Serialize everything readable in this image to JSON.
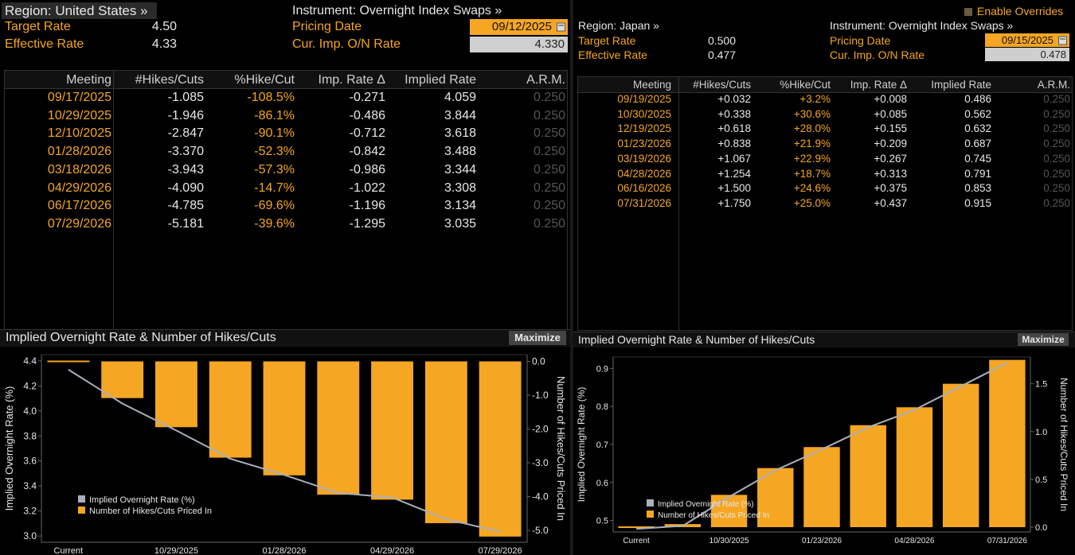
{
  "left": {
    "region": "Region: United States »",
    "instrument": "Instrument: Overnight Index Swaps »",
    "target_rate_label": "Target Rate",
    "target_rate": "4.50",
    "effective_rate_label": "Effective Rate",
    "effective_rate": "4.33",
    "pricing_date_label": "Pricing Date",
    "pricing_date": "09/12/2025",
    "cur_imp_label": "Cur. Imp. O/N Rate",
    "cur_imp_rate": "4.330",
    "table": {
      "headers": [
        "Meeting",
        "#Hikes/Cuts",
        "%Hike/Cut",
        "Imp. Rate Δ",
        "Implied Rate",
        "A.R.M."
      ],
      "rows": [
        [
          "09/17/2025",
          "-1.085",
          "-108.5%",
          "-0.271",
          "4.059",
          "0.250"
        ],
        [
          "10/29/2025",
          "-1.946",
          "-86.1%",
          "-0.486",
          "3.844",
          "0.250"
        ],
        [
          "12/10/2025",
          "-2.847",
          "-90.1%",
          "-0.712",
          "3.618",
          "0.250"
        ],
        [
          "01/28/2026",
          "-3.370",
          "-52.3%",
          "-0.842",
          "3.488",
          "0.250"
        ],
        [
          "03/18/2026",
          "-3.943",
          "-57.3%",
          "-0.986",
          "3.344",
          "0.250"
        ],
        [
          "04/29/2026",
          "-4.090",
          "-14.7%",
          "-1.022",
          "3.308",
          "0.250"
        ],
        [
          "06/17/2026",
          "-4.785",
          "-69.6%",
          "-1.196",
          "3.134",
          "0.250"
        ],
        [
          "07/29/2026",
          "-5.181",
          "-39.6%",
          "-1.295",
          "3.035",
          "0.250"
        ]
      ]
    },
    "chart_title": "Implied Overnight Rate & Number of Hikes/Cuts",
    "maximize": "Maximize"
  },
  "right": {
    "enable_overrides": "Enable Overrides",
    "region": "Region: Japan »",
    "instrument": "Instrument: Overnight Index Swaps »",
    "target_rate_label": "Target Rate",
    "target_rate": "0.500",
    "effective_rate_label": "Effective Rate",
    "effective_rate": "0.477",
    "pricing_date_label": "Pricing Date",
    "pricing_date": "09/15/2025",
    "cur_imp_label": "Cur. Imp. O/N Rate",
    "cur_imp_rate": "0.478",
    "table": {
      "headers": [
        "Meeting",
        "#Hikes/Cuts",
        "%Hike/Cut",
        "Imp. Rate Δ",
        "Implied Rate",
        "A.R.M."
      ],
      "rows": [
        [
          "09/19/2025",
          "+0.032",
          "+3.2%",
          "+0.008",
          "0.486",
          "0.250"
        ],
        [
          "10/30/2025",
          "+0.338",
          "+30.6%",
          "+0.085",
          "0.562",
          "0.250"
        ],
        [
          "12/19/2025",
          "+0.618",
          "+28.0%",
          "+0.155",
          "0.632",
          "0.250"
        ],
        [
          "01/23/2026",
          "+0.838",
          "+21.9%",
          "+0.209",
          "0.687",
          "0.250"
        ],
        [
          "03/19/2026",
          "+1.067",
          "+22.9%",
          "+0.267",
          "0.745",
          "0.250"
        ],
        [
          "04/28/2026",
          "+1.254",
          "+18.7%",
          "+0.313",
          "0.791",
          "0.250"
        ],
        [
          "06/16/2026",
          "+1.500",
          "+24.6%",
          "+0.375",
          "0.853",
          "0.250"
        ],
        [
          "07/31/2026",
          "+1.750",
          "+25.0%",
          "+0.437",
          "0.915",
          "0.250"
        ]
      ]
    },
    "chart_title": "Implied Overnight Rate & Number of Hikes/Cuts",
    "maximize": "Maximize"
  },
  "colors": {
    "accent": "#f5a623",
    "line": "#a9b0bd",
    "text": "#e8e8e8"
  },
  "chart_data": [
    {
      "type": "bar",
      "region": "United States",
      "categories": [
        "Current",
        "09/17/2025",
        "10/29/2025",
        "12/10/2025",
        "01/28/2026",
        "03/18/2026",
        "04/29/2026",
        "06/17/2026",
        "07/29/2026"
      ],
      "x_tick_labels": [
        "Current",
        "10/29/2025",
        "01/28/2026",
        "04/29/2026",
        "07/29/2026"
      ],
      "series": [
        {
          "name": "Number of Hikes/Cuts Priced In",
          "axis": "right",
          "values": [
            0,
            -1.085,
            -1.946,
            -2.847,
            -3.37,
            -3.943,
            -4.09,
            -4.785,
            -5.181
          ]
        },
        {
          "name": "Implied Overnight Rate (%)",
          "axis": "left",
          "type": "line",
          "values": [
            4.33,
            4.059,
            3.844,
            3.618,
            3.488,
            3.344,
            3.308,
            3.134,
            3.035
          ]
        }
      ],
      "ylabel": "Implied Overnight Rate (%)",
      "y2label": "Number of Hikes/Cuts Priced In",
      "ylim": [
        2.95,
        4.45
      ],
      "yticks": [
        3.0,
        3.2,
        3.4,
        3.6,
        3.8,
        4.0,
        4.2,
        4.4
      ],
      "y2lim": [
        -5.35,
        0.2
      ],
      "y2ticks": [
        0.0,
        -1.0,
        -2.0,
        -3.0,
        -4.0,
        -5.0
      ],
      "legend": "bottom-left"
    },
    {
      "type": "bar",
      "region": "Japan",
      "categories": [
        "Current",
        "09/19/2025",
        "10/30/2025",
        "12/19/2025",
        "01/23/2026",
        "03/19/2026",
        "04/28/2026",
        "06/16/2026",
        "07/31/2026"
      ],
      "x_tick_labels": [
        "Current",
        "10/30/2025",
        "01/23/2026",
        "04/28/2026",
        "07/31/2026"
      ],
      "series": [
        {
          "name": "Number of Hikes/Cuts Priced In",
          "axis": "right",
          "values": [
            0,
            0.032,
            0.338,
            0.618,
            0.838,
            1.067,
            1.254,
            1.5,
            1.75
          ]
        },
        {
          "name": "Implied Overnight Rate (%)",
          "axis": "left",
          "type": "line",
          "values": [
            0.478,
            0.486,
            0.562,
            0.632,
            0.687,
            0.745,
            0.791,
            0.853,
            0.915
          ]
        }
      ],
      "ylabel": "Implied Overnight Rate (%)",
      "y2label": "Number of Hikes/Cuts Priced In",
      "ylim": [
        0.47,
        0.93
      ],
      "yticks": [
        0.5,
        0.6,
        0.7,
        0.8,
        0.9
      ],
      "y2lim": [
        -0.05,
        1.78
      ],
      "y2ticks": [
        0.0,
        0.5,
        1.0,
        1.5
      ],
      "legend": "bottom-left"
    }
  ]
}
